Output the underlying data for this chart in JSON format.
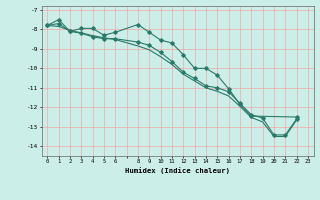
{
  "xlabel": "Humidex (Indice chaleur)",
  "xlim": [
    -0.5,
    23.5
  ],
  "ylim": [
    -14.5,
    -6.8
  ],
  "yticks": [
    -14,
    -13,
    -12,
    -11,
    -10,
    -9,
    -8,
    -7
  ],
  "line_color": "#2a7a6a",
  "bg_color": "#cceee8",
  "grid_color": "#f0a8a8",
  "line1_x": [
    0,
    1,
    2,
    3,
    4,
    5,
    6,
    8,
    9,
    10,
    11,
    12,
    13,
    14,
    15,
    16,
    17,
    18,
    22
  ],
  "line1_y": [
    -7.8,
    -7.5,
    -8.1,
    -7.95,
    -7.95,
    -8.3,
    -8.15,
    -7.75,
    -8.15,
    -8.55,
    -8.7,
    -9.3,
    -10.0,
    -10.0,
    -10.35,
    -11.05,
    -11.85,
    -12.45,
    -12.5
  ],
  "line2_x": [
    0,
    1,
    2,
    3,
    4,
    5,
    6,
    8,
    9,
    10,
    11,
    12,
    13,
    14,
    15,
    16,
    17,
    18,
    19,
    20,
    21,
    22
  ],
  "line2_y": [
    -7.8,
    -7.7,
    -8.1,
    -8.2,
    -8.38,
    -8.48,
    -8.48,
    -8.65,
    -8.82,
    -9.18,
    -9.65,
    -10.2,
    -10.52,
    -10.9,
    -11.0,
    -11.2,
    -11.8,
    -12.38,
    -12.55,
    -13.42,
    -13.42,
    -12.6
  ],
  "line3_x": [
    0,
    1,
    2,
    3,
    4,
    5,
    6,
    8,
    9,
    10,
    11,
    12,
    13,
    14,
    15,
    16,
    17,
    18,
    19,
    20,
    21,
    22
  ],
  "line3_y": [
    -7.8,
    -7.85,
    -8.05,
    -8.18,
    -8.32,
    -8.43,
    -8.52,
    -8.85,
    -9.05,
    -9.4,
    -9.8,
    -10.3,
    -10.65,
    -11.0,
    -11.18,
    -11.42,
    -11.95,
    -12.52,
    -12.75,
    -13.5,
    -13.5,
    -12.65
  ]
}
